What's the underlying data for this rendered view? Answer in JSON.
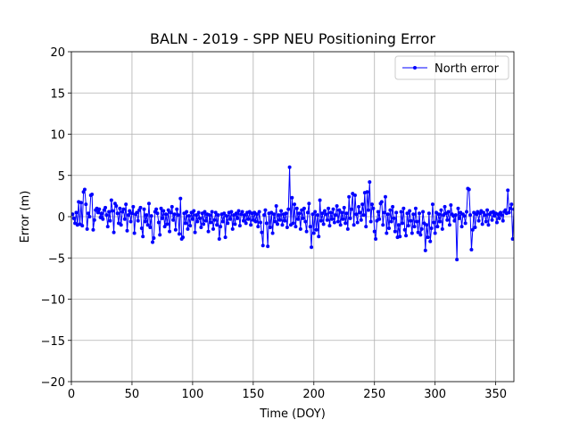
{
  "chart_data": {
    "type": "line",
    "title": "BALN - 2019 - SPP NEU Positioning Error",
    "xlabel": "Time (DOY)",
    "ylabel": "Error (m)",
    "xlim": [
      0,
      365
    ],
    "ylim": [
      -20,
      20
    ],
    "xticks": [
      0,
      50,
      100,
      150,
      200,
      250,
      300,
      350
    ],
    "yticks": [
      {
        "value": -20,
        "label": "−20"
      },
      {
        "value": -15,
        "label": "−15"
      },
      {
        "value": -10,
        "label": "−10"
      },
      {
        "value": -5,
        "label": "−5"
      },
      0,
      5,
      10,
      15,
      20
    ],
    "grid": true,
    "legend": "upper right",
    "x": [
      1,
      2,
      3,
      4,
      5,
      6,
      7,
      8,
      9,
      10,
      11,
      12,
      13,
      14,
      15,
      16,
      17,
      18,
      19,
      20,
      21,
      22,
      23,
      24,
      25,
      26,
      27,
      28,
      29,
      30,
      31,
      32,
      33,
      34,
      35,
      36,
      37,
      38,
      39,
      40,
      41,
      42,
      43,
      44,
      45,
      46,
      47,
      48,
      49,
      50,
      51,
      52,
      53,
      54,
      55,
      56,
      57,
      58,
      59,
      60,
      61,
      62,
      63,
      64,
      65,
      66,
      67,
      68,
      69,
      70,
      71,
      72,
      73,
      74,
      75,
      76,
      77,
      78,
      79,
      80,
      81,
      82,
      83,
      84,
      85,
      86,
      87,
      88,
      89,
      90,
      91,
      92,
      93,
      94,
      95,
      96,
      97,
      98,
      99,
      100,
      101,
      102,
      103,
      104,
      105,
      106,
      107,
      108,
      109,
      110,
      111,
      112,
      113,
      114,
      115,
      116,
      117,
      118,
      119,
      120,
      121,
      122,
      123,
      124,
      125,
      126,
      127,
      128,
      129,
      130,
      131,
      132,
      133,
      134,
      135,
      136,
      137,
      138,
      139,
      140,
      141,
      142,
      143,
      144,
      145,
      146,
      147,
      148,
      149,
      150,
      151,
      152,
      153,
      154,
      155,
      156,
      157,
      158,
      159,
      160,
      161,
      162,
      163,
      164,
      165,
      166,
      167,
      168,
      169,
      170,
      171,
      172,
      173,
      174,
      175,
      176,
      177,
      178,
      179,
      180,
      181,
      182,
      183,
      184,
      185,
      186,
      187,
      188,
      189,
      190,
      191,
      192,
      193,
      194,
      195,
      196,
      197,
      198,
      199,
      200,
      201,
      202,
      203,
      204,
      205,
      206,
      207,
      208,
      209,
      210,
      211,
      212,
      213,
      214,
      215,
      216,
      217,
      218,
      219,
      220,
      221,
      222,
      223,
      224,
      225,
      226,
      227,
      228,
      229,
      230,
      231,
      232,
      233,
      234,
      235,
      236,
      237,
      238,
      239,
      240,
      241,
      242,
      243,
      244,
      245,
      246,
      247,
      248,
      249,
      250,
      251,
      252,
      253,
      254,
      255,
      256,
      257,
      258,
      259,
      260,
      261,
      262,
      263,
      264,
      265,
      266,
      267,
      268,
      269,
      270,
      271,
      272,
      273,
      274,
      275,
      276,
      277,
      278,
      279,
      280,
      281,
      282,
      283,
      284,
      285,
      286,
      287,
      288,
      289,
      290,
      291,
      292,
      293,
      294,
      295,
      296,
      297,
      298,
      299,
      300,
      301,
      302,
      303,
      304,
      305,
      306,
      307,
      308,
      309,
      310,
      311,
      312,
      313,
      314,
      315,
      316,
      317,
      318,
      319,
      320,
      321,
      322,
      323,
      324,
      325,
      326,
      327,
      328,
      329,
      330,
      331,
      332,
      333,
      334,
      335,
      336,
      337,
      338,
      339,
      340,
      341,
      342,
      343,
      344,
      345,
      346,
      347,
      348,
      349,
      350,
      351,
      352,
      353,
      354,
      355,
      356,
      357,
      358,
      359,
      360,
      361,
      362,
      363,
      364,
      365
    ],
    "series": [
      {
        "name": "North error",
        "color": "#0000ff",
        "values": [
          0.3,
          -0.2,
          -0.8,
          0.5,
          -1.0,
          1.8,
          -0.9,
          1.7,
          -1.1,
          3.0,
          3.3,
          1.5,
          -1.5,
          0.4,
          0.0,
          2.6,
          2.7,
          -1.6,
          -0.4,
          0.8,
          1.0,
          0.5,
          0.9,
          -0.1,
          0.4,
          -0.3,
          0.8,
          1.1,
          0.2,
          -1.2,
          0.6,
          -0.5,
          2.0,
          0.7,
          -1.9,
          1.6,
          1.3,
          0.4,
          -0.8,
          1.0,
          -1.0,
          0.6,
          0.9,
          -0.3,
          1.5,
          -1.7,
          0.2,
          0.7,
          -0.6,
          0.4,
          1.2,
          -2.0,
          0.3,
          0.5,
          -0.5,
          0.8,
          1.1,
          -1.4,
          -2.4,
          0.9,
          -0.6,
          0.2,
          -1.0,
          1.6,
          -1.3,
          0.1,
          -3.1,
          -2.6,
          0.6,
          0.9,
          0.4,
          -0.7,
          -2.2,
          1.0,
          -0.2,
          0.7,
          -1.2,
          0.3,
          -0.9,
          0.8,
          -1.8,
          0.5,
          1.2,
          -0.4,
          0.3,
          -1.6,
          0.9,
          0.2,
          -2.1,
          2.2,
          -2.7,
          -2.5,
          0.4,
          -0.8,
          0.6,
          -1.5,
          0.1,
          -1.1,
          0.5,
          -0.3,
          0.7,
          -1.9,
          0.2,
          -0.6,
          0.5,
          -0.2,
          -1.3,
          0.4,
          -0.9,
          0.6,
          -0.5,
          0.3,
          -1.8,
          0.2,
          -0.7,
          0.6,
          -1.5,
          -0.4,
          0.5,
          -1.0,
          0.2,
          -2.7,
          -1.2,
          0.3,
          -0.6,
          0.4,
          -2.5,
          0.1,
          -0.8,
          0.5,
          -0.3,
          0.6,
          -1.5,
          0.2,
          -0.9,
          0.4,
          -0.2,
          0.7,
          -1.1,
          0.3,
          0.6,
          -0.5,
          0.2,
          -0.8,
          0.5,
          -0.3,
          0.6,
          -1.0,
          0.4,
          -0.4,
          0.5,
          -0.6,
          0.3,
          -1.2,
          0.6,
          -0.7,
          -1.9,
          -3.5,
          0.2,
          0.8,
          -0.8,
          -3.6,
          0.4,
          -1.3,
          0.5,
          -2.0,
          0.3,
          -0.6,
          1.3,
          -0.9,
          0.2,
          -0.4,
          0.7,
          -1.0,
          0.3,
          -0.5,
          0.4,
          -1.3,
          0.9,
          6.0,
          -1.0,
          2.3,
          -0.8,
          1.5,
          -1.2,
          1.0,
          -0.3,
          0.4,
          -1.5,
          0.8,
          -0.2,
          1.0,
          -0.6,
          -1.8,
          0.5,
          1.6,
          -1.2,
          -3.7,
          0.3,
          -2.0,
          0.6,
          -1.6,
          0.2,
          -2.4,
          2.0,
          -0.5,
          0.4,
          -0.9,
          0.7,
          0.3,
          -0.4,
          1.0,
          -1.1,
          0.5,
          -0.3,
          0.9,
          -0.7,
          0.2,
          1.3,
          -0.6,
          0.8,
          -1.0,
          0.5,
          -0.3,
          1.1,
          -0.8,
          0.4,
          -1.5,
          2.4,
          -0.2,
          0.9,
          2.8,
          -1.0,
          2.6,
          0.3,
          -0.7,
          1.2,
          0.5,
          -0.4,
          1.5,
          0.2,
          2.9,
          -1.2,
          3.0,
          0.8,
          4.2,
          -0.6,
          1.5,
          1.0,
          -1.8,
          -2.7,
          -0.5,
          0.6,
          -0.3,
          1.6,
          1.8,
          -1.0,
          0.5,
          2.4,
          -2.0,
          0.3,
          -1.4,
          0.8,
          -0.6,
          1.2,
          -0.2,
          -1.8,
          0.5,
          -2.5,
          -1.0,
          -2.4,
          0.6,
          -0.8,
          1.0,
          -1.6,
          -2.3,
          0.4,
          -1.1,
          0.7,
          -0.5,
          -2.0,
          0.3,
          -1.2,
          1.0,
          -0.6,
          -1.9,
          0.4,
          -2.2,
          -1.5,
          0.6,
          -0.8,
          -4.1,
          -1.0,
          -2.5,
          0.4,
          -3.0,
          -1.4,
          1.5,
          -0.7,
          -2.0,
          0.5,
          -1.2,
          0.3,
          -0.6,
          0.8,
          -1.5,
          0.2,
          1.2,
          0.4,
          -0.4,
          0.6,
          -1.0,
          1.4,
          0.3,
          0.1,
          -0.5,
          0.2,
          -5.2,
          1.0,
          -0.2,
          0.5,
          -1.2,
          0.3,
          0.1,
          -0.8,
          0.6,
          3.4,
          3.3,
          0.2,
          -4.0,
          -1.6,
          0.5,
          -1.3,
          0.3,
          0.6,
          -0.5,
          0.4,
          0.7,
          -0.9,
          0.5,
          0.2,
          -0.6,
          0.8,
          -1.0,
          0.3,
          0.5,
          -0.4,
          0.6,
          0.1,
          0.4,
          -0.7,
          0.3,
          -0.2,
          0.5,
          0.2,
          -0.5,
          0.6,
          0.8,
          0.4,
          3.2,
          0.5,
          1.0,
          1.5,
          -2.7,
          0.9
        ]
      }
    ]
  }
}
